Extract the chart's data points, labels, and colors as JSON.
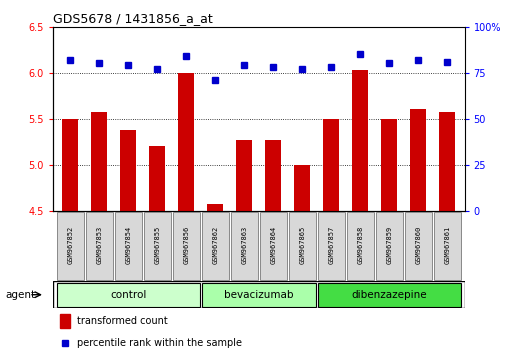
{
  "title": "GDS5678 / 1431856_a_at",
  "samples": [
    "GSM967852",
    "GSM967853",
    "GSM967854",
    "GSM967855",
    "GSM967856",
    "GSM967862",
    "GSM967863",
    "GSM967864",
    "GSM967865",
    "GSM967857",
    "GSM967858",
    "GSM967859",
    "GSM967860",
    "GSM967861"
  ],
  "transformed_counts": [
    5.5,
    5.57,
    5.38,
    5.2,
    6.0,
    4.57,
    5.27,
    5.27,
    5.0,
    5.5,
    6.03,
    5.5,
    5.6,
    5.57
  ],
  "percentile_ranks": [
    82,
    80,
    79,
    77,
    84,
    71,
    79,
    78,
    77,
    78,
    85,
    80,
    82,
    81
  ],
  "groups": [
    {
      "label": "control",
      "start": 0,
      "end": 5,
      "color": "#ccffcc"
    },
    {
      "label": "bevacizumab",
      "start": 5,
      "end": 9,
      "color": "#aaffaa"
    },
    {
      "label": "dibenzazepine",
      "start": 9,
      "end": 14,
      "color": "#44dd44"
    }
  ],
  "ylim_left": [
    4.5,
    6.5
  ],
  "ylim_right": [
    0,
    100
  ],
  "yticks_left": [
    4.5,
    5.0,
    5.5,
    6.0,
    6.5
  ],
  "yticks_right": [
    0,
    25,
    50,
    75,
    100
  ],
  "bar_color": "#cc0000",
  "dot_color": "#0000cc",
  "cell_bg": "#d8d8d8",
  "plot_bg_color": "#ffffff",
  "agent_label": "agent",
  "legend_bar": "transformed count",
  "legend_dot": "percentile rank within the sample"
}
